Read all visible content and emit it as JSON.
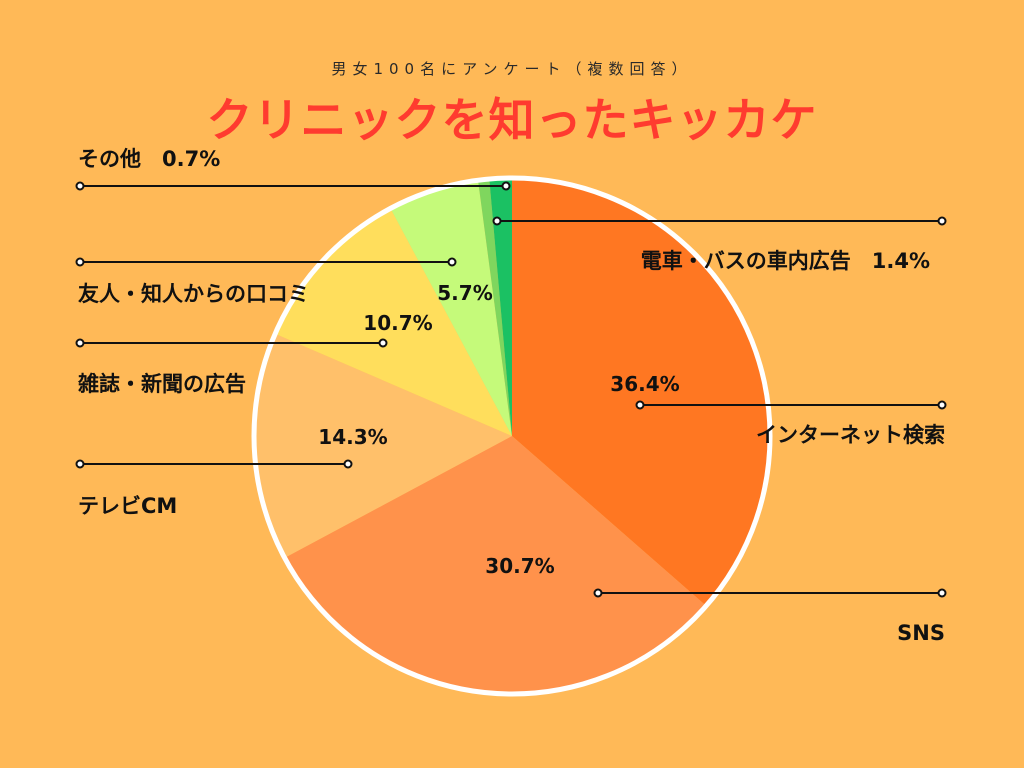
{
  "header": {
    "subtitle": "男女100名にアンケート（複数回答）",
    "title": "クリニックを知ったキッカケ"
  },
  "chart_data": {
    "type": "pie",
    "title": "クリニックを知ったキッカケ",
    "subtitle": "男女100名にアンケート（複数回答）",
    "start": "12 o'clock, clockwise",
    "slices": [
      {
        "name": "インターネット検索",
        "value": 36.4,
        "label": "36.4%",
        "color": "#FF7722"
      },
      {
        "name": "SNS",
        "value": 30.7,
        "label": "30.7%",
        "color": "#FF924B"
      },
      {
        "name": "テレビCM",
        "value": 14.3,
        "label": "14.3%",
        "color": "#FFC06A"
      },
      {
        "name": "雑誌・新聞の広告",
        "value": 10.7,
        "label": "10.7%",
        "color": "#FFDE5C"
      },
      {
        "name": "友人・知人からの口コミ",
        "value": 5.7,
        "label": "5.7%",
        "color": "#C5FA7A"
      },
      {
        "name": "その他",
        "value": 0.7,
        "label": "0.7%",
        "color": "#7FD65E"
      },
      {
        "name": "電車・バスの車内広告",
        "value": 1.4,
        "label": "1.4%",
        "color": "#1BC163"
      }
    ],
    "annotations": [
      {
        "text": "その他　0.7%"
      },
      {
        "text": "電車・バスの車内広告　1.4%"
      }
    ]
  }
}
